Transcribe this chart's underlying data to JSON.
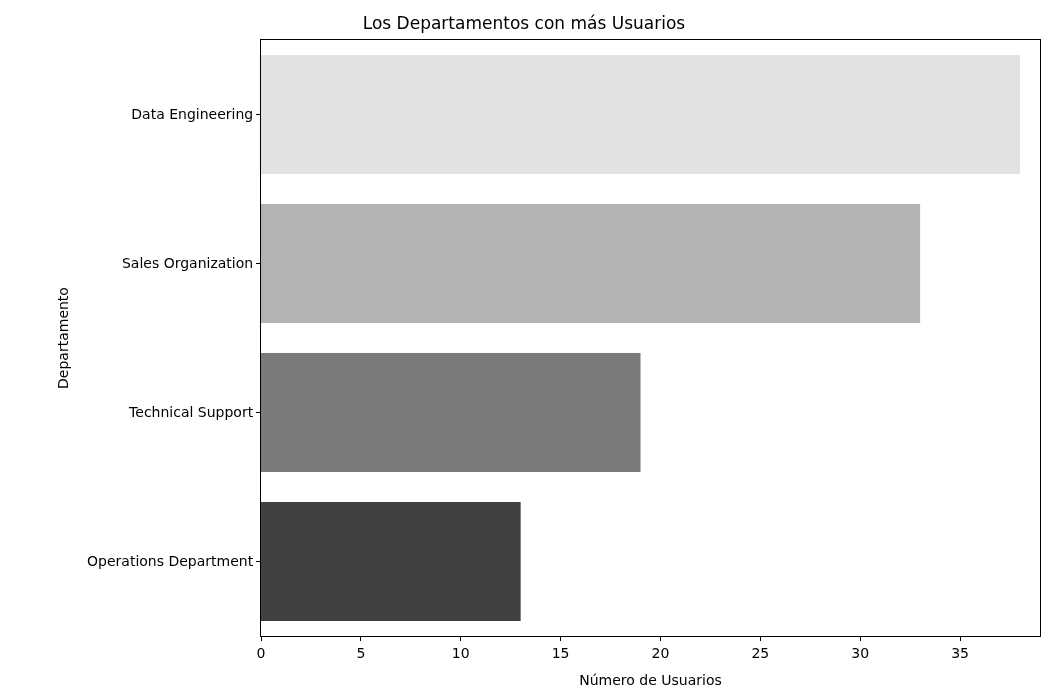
{
  "chart_data": {
    "type": "bar",
    "orientation": "horizontal",
    "title": "Los Departamentos con más Usuarios",
    "xlabel": "Número de Usuarios",
    "ylabel": "Departamento",
    "categories": [
      "Data Engineering",
      "Sales Organization",
      "Technical Support",
      "Operations Department"
    ],
    "values": [
      38,
      33,
      19,
      13
    ],
    "colors": [
      "#e2e2e2",
      "#b3b3b3",
      "#7a7a7a",
      "#414141"
    ],
    "xlim": [
      0,
      39
    ],
    "xticks": [
      0,
      5,
      10,
      15,
      20,
      25,
      30,
      35
    ]
  }
}
